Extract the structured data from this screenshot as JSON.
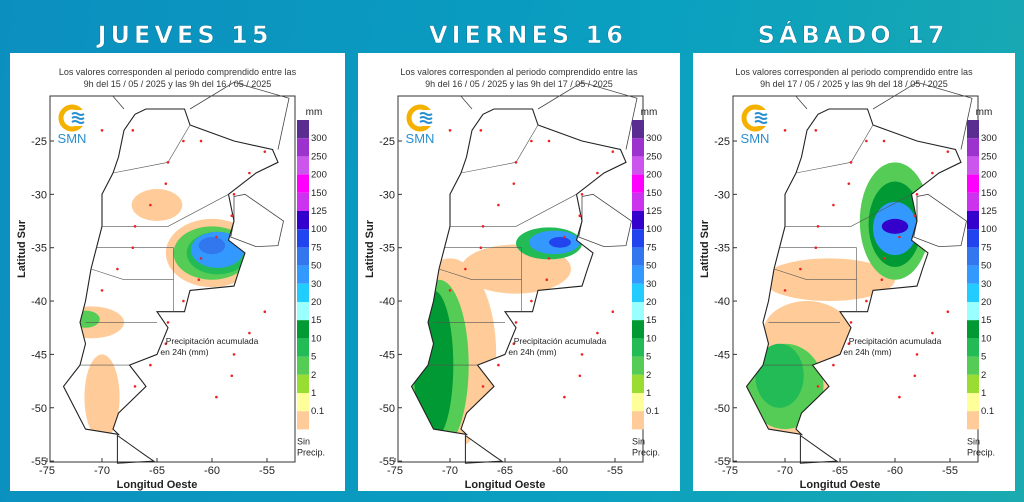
{
  "panels": [
    {
      "title": "JUEVES 15",
      "header_line1": "Los valores corresponden al periodo comprendido entre las",
      "header_line2": "9h del 15 / 05 / 2025  y las 9h del 16 / 05 / 2025"
    },
    {
      "title": "VIERNES 16",
      "header_line1": "Los valores corresponden al periodo comprendido entre las",
      "header_line2": "9h del 16 / 05 / 2025  y las 9h del 17 / 05 / 2025"
    },
    {
      "title": "SÁBADO 17",
      "header_line1": "Los valores corresponden al periodo comprendido entre las",
      "header_line2": "9h del 17 / 05 / 2025  y las 9h del 18 / 05 / 2025"
    }
  ],
  "logo_text": "SMN",
  "note_line1": "Precipitación acumulada",
  "note_line2": "en 24h (mm)",
  "xlabel": "Longitud Oeste",
  "ylabel": "Latitud Sur",
  "x_ticks": [
    "-75",
    "-70",
    "-65",
    "-60",
    "-55"
  ],
  "y_ticks": [
    "-25",
    "-30",
    "-35",
    "-40",
    "-45",
    "-50",
    "-55"
  ],
  "legend": {
    "unit": "mm",
    "no_precip_line1": "Sin",
    "no_precip_line2": "Precip.",
    "bins": [
      {
        "label": "300",
        "color": "#5a2d91"
      },
      {
        "label": "250",
        "color": "#9b33cc"
      },
      {
        "label": "200",
        "color": "#cc55ee"
      },
      {
        "label": "150",
        "color": "#ff00ff"
      },
      {
        "label": "125",
        "color": "#cc33ee"
      },
      {
        "label": "100",
        "color": "#3300cc"
      },
      {
        "label": "75",
        "color": "#2244ee"
      },
      {
        "label": "50",
        "color": "#3377ee"
      },
      {
        "label": "30",
        "color": "#3399ff"
      },
      {
        "label": "20",
        "color": "#22ccff"
      },
      {
        "label": "15",
        "color": "#99ffff"
      },
      {
        "label": "10",
        "color": "#009933"
      },
      {
        "label": "5",
        "color": "#22bb55"
      },
      {
        "label": "2",
        "color": "#55cc55"
      },
      {
        "label": "1",
        "color": "#99dd33"
      },
      {
        "label": "0.1",
        "color": "#ffff99"
      },
      {
        "label": "",
        "color": "#ffcc99"
      }
    ]
  }
}
